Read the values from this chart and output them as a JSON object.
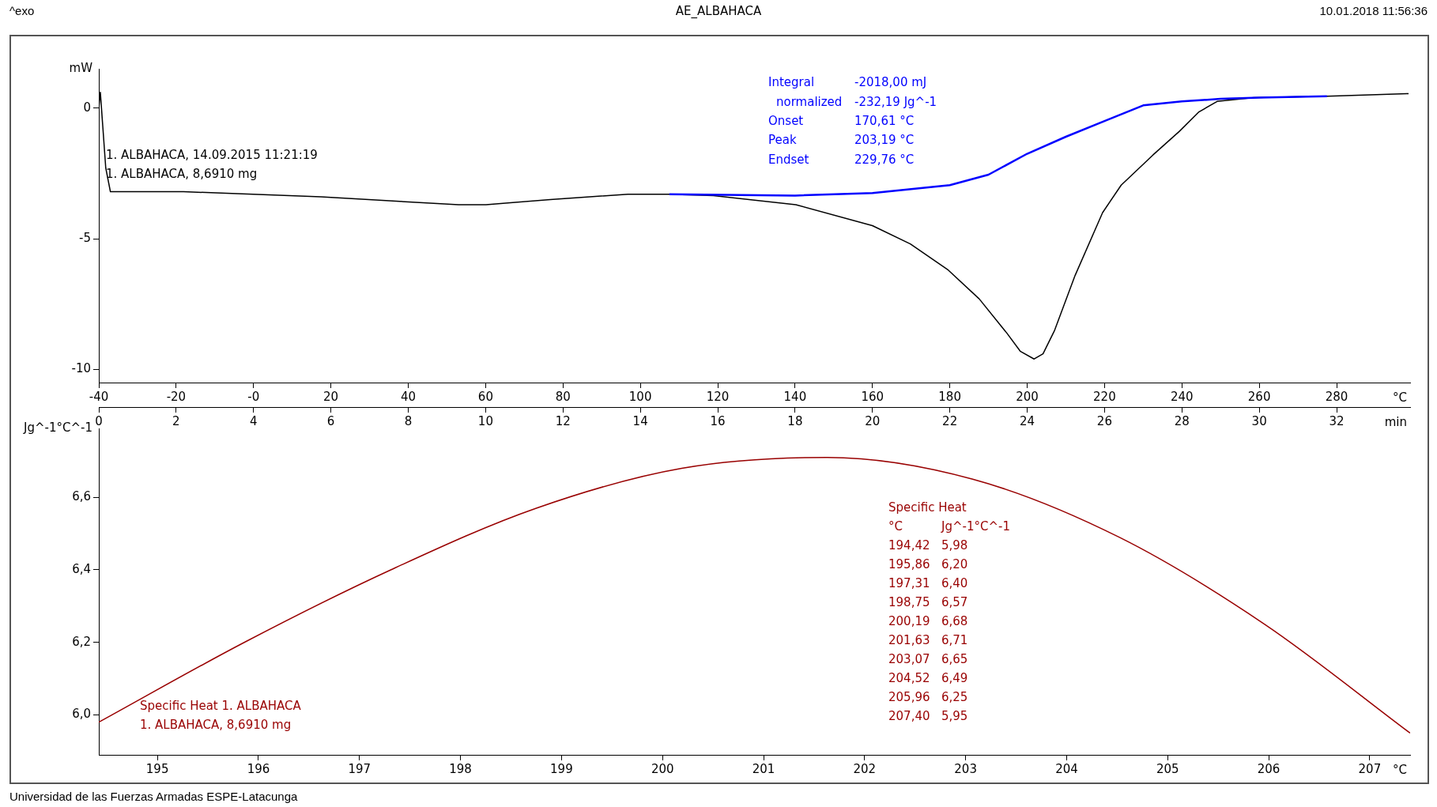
{
  "chart_data": [
    {
      "type": "line",
      "title": "AE_ALBAHACA",
      "xlabel": "°C",
      "ylabel": "mW",
      "x2label": "min",
      "annotations": [
        "^exo",
        "10.01.2018 11:56:36",
        "1. ALBAHACA, 14.09.2015 11:21:19",
        "1. ALBAHACA, 8,6910 mg",
        "Integral",
        "-2018,00 mJ",
        "normalized",
        "-232,19 Jg^-1",
        "Onset",
        "170,61 °C",
        "Peak",
        "203,19 °C",
        "Endset",
        "229,76 °C"
      ],
      "xlim": [
        -40,
        299
      ],
      "xticks": [
        -40,
        -20,
        {
          "value": 0,
          "label": "-0"
        },
        20,
        40,
        60,
        80,
        100,
        120,
        140,
        160,
        180,
        200,
        220,
        240,
        260,
        280
      ],
      "x2lim": [
        0,
        33.9
      ],
      "x2ticks": [
        0,
        2,
        4,
        6,
        8,
        10,
        12,
        14,
        16,
        18,
        20,
        22,
        24,
        26,
        28,
        30,
        32
      ],
      "ylim": [
        -10.5,
        1.5
      ],
      "yticks": [
        -10,
        -5,
        0
      ],
      "series": [
        {
          "color": "#000000",
          "x": [
            -40,
            -39.6,
            -38.2,
            -37,
            -18.1,
            17.4,
            53,
            60.1,
            76.7,
            96.8,
            107.5,
            118.9,
            140.2,
            160,
            169.8,
            179.6,
            187.6,
            194.7,
            198.2,
            201.8,
            204.1,
            207.1,
            212.4,
            219.5,
            224.3,
            232.5,
            239.3,
            244.4,
            249.1,
            258.6,
            277.5,
            298.6
          ],
          "values": [
            0,
            0.6,
            -2.3,
            -3.2,
            -3.2,
            -3.4,
            -3.7,
            -3.7,
            -3.5,
            -3.3,
            -3.3,
            -3.35,
            -3.7,
            -4.5,
            -5.2,
            -6.2,
            -7.3,
            -8.6,
            -9.3,
            -9.6,
            -9.4,
            -8.5,
            -6.4,
            -4.0,
            -2.95,
            -1.8,
            -0.9,
            -0.15,
            0.25,
            0.4,
            0.45,
            0.55
          ]
        },
        {
          "color": "#0000ff",
          "x": [
            107.5,
            140,
            160,
            180,
            190,
            200,
            210,
            220,
            230,
            240,
            250,
            260,
            277.5
          ],
          "values": [
            -3.3,
            -3.35,
            -3.25,
            -2.95,
            -2.55,
            -1.75,
            -1.1,
            -0.5,
            0.1,
            0.25,
            0.35,
            0.4,
            0.45
          ]
        }
      ]
    },
    {
      "type": "line",
      "xlabel": "°C",
      "ylabel": "Jg^-1°C^-1",
      "annotations": [
        "Specific Heat 1. ALBAHACA",
        "1. ALBAHACA, 8,6910 mg",
        "Specific Heat",
        "°C",
        "Jg^-1°C^-1",
        "Universidad de las Fuerzas Armadas ESPE-Latacunga",
        "194,42",
        "5,98",
        "195,86",
        "6,20",
        "197,31",
        "6,40",
        "198,75",
        "6,57",
        "200,19",
        "6,68",
        "201,63",
        "6,71",
        "203,07",
        "6,65",
        "204,52",
        "6,49",
        "205,96",
        "6,25",
        "207,40",
        "5,95"
      ],
      "xlim": [
        194.42,
        207.4
      ],
      "xticks": [
        195,
        196,
        197,
        198,
        199,
        200,
        201,
        202,
        203,
        204,
        205,
        206,
        207
      ],
      "ylim": [
        5.89,
        6.79
      ],
      "yticks": [
        {
          "value": 6.0,
          "label": "6,0"
        },
        {
          "value": 6.2,
          "label": "6,2"
        },
        {
          "value": 6.4,
          "label": "6,4"
        },
        {
          "value": 6.6,
          "label": "6,6"
        }
      ],
      "series": [
        {
          "color": "#990000",
          "x": [
            194.42,
            195.86,
            197.31,
            198.75,
            200.19,
            201.63,
            203.07,
            204.52,
            205.96,
            207.4
          ],
          "values": [
            5.98,
            6.2,
            6.4,
            6.57,
            6.68,
            6.71,
            6.65,
            6.49,
            6.25,
            5.95
          ]
        }
      ]
    }
  ]
}
